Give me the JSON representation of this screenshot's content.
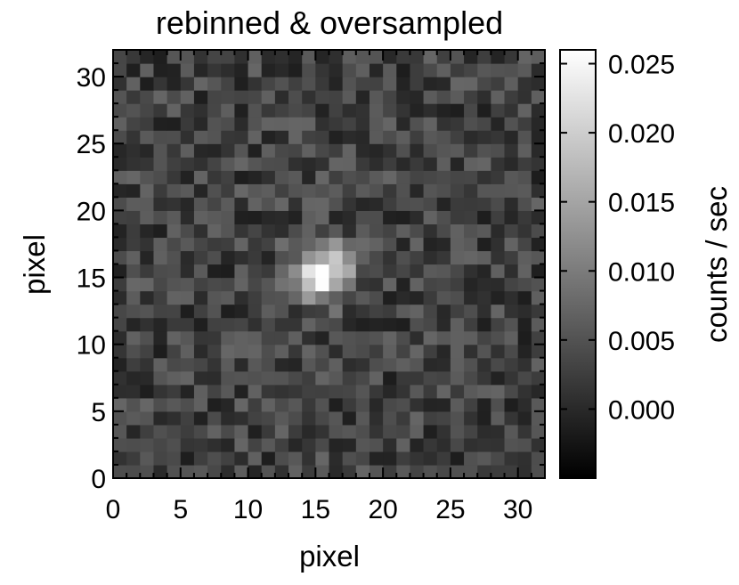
{
  "chart_data": {
    "type": "heatmap",
    "title": "rebinned & oversampled",
    "xlabel": "pixel",
    "ylabel": "pixel",
    "colorbar_label": "counts / sec",
    "colormap": "grayscale",
    "x_range": [
      0,
      32
    ],
    "y_range": [
      0,
      32
    ],
    "x_ticks": [
      0,
      5,
      10,
      15,
      20,
      25,
      30
    ],
    "y_ticks": [
      0,
      5,
      10,
      15,
      20,
      25,
      30
    ],
    "x_tick_labels": [
      "0",
      "5",
      "10",
      "15",
      "20",
      "25",
      "30"
    ],
    "y_tick_labels": [
      "0",
      "5",
      "10",
      "15",
      "20",
      "25",
      "30"
    ],
    "value_range": [
      -0.005,
      0.026
    ],
    "colorbar_ticks": [
      0.0,
      0.005,
      0.01,
      0.015,
      0.02,
      0.025
    ],
    "colorbar_tick_labels": [
      "0.000",
      "0.005",
      "0.010",
      "0.015",
      "0.020",
      "0.025"
    ],
    "grid": false,
    "background_level": 0.003,
    "source": {
      "x": 15.5,
      "y": 15.5,
      "peak": 0.026
    },
    "colors": {
      "low": "#000000",
      "high": "#ffffff"
    }
  }
}
